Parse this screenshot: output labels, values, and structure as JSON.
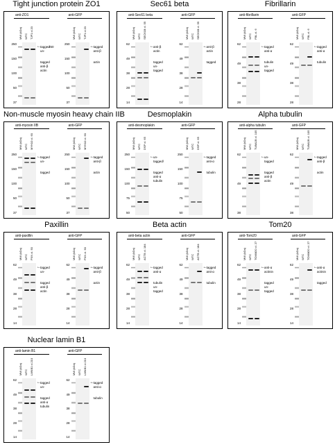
{
  "panels": [
    {
      "title": "Tight junction protein ZO1",
      "blots": [
        {
          "antibody": "anti-ZO1",
          "lanes": [
            "MW (kDa)",
            "WTC",
            "TJP1 cl.20"
          ],
          "ticks": [
            "250",
            "150",
            "100",
            "50",
            "37"
          ],
          "notes": [
            "tagged",
            "un-",
            "tagged",
            "anti-β",
            "actin"
          ],
          "extra": "250"
        },
        {
          "antibody": "anti-GFP",
          "lanes": [
            "MW (kDa)",
            "WTC",
            "TJP1 cl.20"
          ],
          "ticks": [
            "250",
            "150",
            "100",
            "50",
            "37"
          ],
          "notes": [
            "tagged",
            "anti-β",
            "actin"
          ]
        }
      ]
    },
    {
      "title": "Sec61 beta",
      "blots": [
        {
          "antibody": "anti-Sec61 beta",
          "lanes": [
            "MW (kDa)",
            "WTC",
            "SEC61B cl. 55"
          ],
          "ticks": [
            "62",
            "49",
            "38",
            "28",
            "14"
          ],
          "notes": [
            "anti-β",
            "actin",
            "tagged",
            "un-",
            "tagged"
          ]
        },
        {
          "antibody": "anti-GFP",
          "lanes": [
            "MW (kDa)",
            "WTC",
            "SEC61B cl. 55"
          ],
          "ticks": [
            "62",
            "49",
            "38",
            "28",
            "14"
          ],
          "notes": [
            "anti-β",
            "actin",
            "tagged"
          ]
        }
      ]
    },
    {
      "title": "Fibrillarin",
      "blots": [
        {
          "antibody": "anti-fibrillarin",
          "lanes": [
            "MW (kDa)",
            "WTC",
            "FBL cl. 6"
          ],
          "ticks": [
            "62",
            "49",
            "38",
            "28"
          ],
          "notes": [
            "tagged",
            "anti-α",
            "tubulin",
            "un-",
            "tagged"
          ]
        },
        {
          "antibody": "anti-GFP",
          "lanes": [
            "MW (kDa)",
            "WTC",
            "FBL cl. 6"
          ],
          "ticks": [
            "62",
            "49",
            "38",
            "28"
          ],
          "notes": [
            "tagged",
            "anti-α",
            "tubulin"
          ]
        }
      ]
    },
    {
      "title": "Non-muscle myosin heavy chain IIB",
      "blots": [
        {
          "antibody": "anti-myosin IIB",
          "lanes": [
            "MW (kDa)",
            "WTC",
            "MYH10 cl. 60"
          ],
          "ticks": [
            "250",
            "150",
            "100",
            "50",
            "37"
          ],
          "notes": [
            "tagged",
            "un-",
            "tagged"
          ]
        },
        {
          "antibody": "anti-GFP",
          "lanes": [
            "MW (kDa)",
            "WTC",
            "MYH10 cl. 60"
          ],
          "ticks": [
            "250",
            "150",
            "100",
            "50",
            "37"
          ],
          "notes": [
            "tagged",
            "anti-β",
            "actin"
          ]
        }
      ]
    },
    {
      "title": "Desmoplakin",
      "blots": [
        {
          "antibody": "anti-desmoplakin",
          "lanes": [
            "MW (kDa)",
            "WTC",
            "DSP cl. 65"
          ],
          "ticks": [
            "250",
            "150",
            "100",
            "75",
            "50"
          ],
          "notes": [
            "un-",
            "tagged/",
            "tagged",
            "anti-α",
            "tubulin"
          ]
        },
        {
          "antibody": "anti-GFP",
          "lanes": [
            "MW (kDa)",
            "WTC",
            "DSP cl. 65"
          ],
          "ticks": [
            "250",
            "150",
            "100",
            "75",
            "50"
          ],
          "notes": [
            "tagged",
            "anti-α",
            "tubulin"
          ]
        }
      ]
    },
    {
      "title": "Alpha tubulin",
      "blots": [
        {
          "antibody": "anti-alpha tubulin",
          "lanes": [
            "MW (kDa)",
            "WTC",
            "TUBA1B cl. 105"
          ],
          "ticks": [
            "62",
            "49",
            "38"
          ],
          "notes": [
            "un-",
            "tagged",
            "tagged",
            "anti-β",
            "actin"
          ]
        },
        {
          "antibody": "anti-GFP",
          "lanes": [
            "MW (kDa)",
            "WTC",
            "TUBA1B cl. 105"
          ],
          "ticks": [
            "62",
            "49",
            "38"
          ],
          "notes": [
            "tagged",
            "anti-β",
            "actin"
          ]
        }
      ]
    },
    {
      "title": "Paxillin",
      "blots": [
        {
          "antibody": "anti-paxillin",
          "lanes": [
            "MW (kDa)",
            "WTC",
            "PXN cl. 50"
          ],
          "ticks": [
            "62",
            "49",
            "38",
            "28",
            "14"
          ],
          "notes": [
            "tagged",
            "un-",
            "tagged",
            "anti-β",
            "actin"
          ]
        },
        {
          "antibody": "anti-GFP",
          "lanes": [
            "MW (kDa)",
            "WTC",
            "PXN cl. 50"
          ],
          "ticks": [
            "62",
            "49",
            "38",
            "28",
            "14"
          ],
          "notes": [
            "tagged",
            "anti-β",
            "actin"
          ]
        }
      ]
    },
    {
      "title": "Beta actin",
      "blots": [
        {
          "antibody": "anti-beta actin",
          "lanes": [
            "MW (kDa)",
            "WTC",
            "ACTB cl. 184"
          ],
          "ticks": [
            "62",
            "49",
            "38",
            "28",
            "14"
          ],
          "notes": [
            "tagged",
            "anti-α",
            "tubulin",
            "un-",
            "tagged"
          ]
        },
        {
          "antibody": "anti-GFP",
          "lanes": [
            "MW (kDa)",
            "WTC",
            "ACTB cl. 184"
          ],
          "ticks": [
            "62",
            "49",
            "38",
            "28",
            "14"
          ],
          "notes": [
            "tagged",
            "anti-α",
            "tubulin"
          ]
        }
      ]
    },
    {
      "title": "Tom20",
      "blots": [
        {
          "antibody": "anti-Tom20",
          "lanes": [
            "MW (kDa)",
            "WTC",
            "TOMM20 cl. 27"
          ],
          "ticks": [
            "62",
            "49",
            "38",
            "28",
            "14"
          ],
          "notes": [
            "anti-α",
            "actinin",
            "tagged",
            "un-",
            "tagged"
          ]
        },
        {
          "antibody": "anti-GFP",
          "lanes": [
            "MW (kDa)",
            "WTC",
            "TOMM20 cl. 27"
          ],
          "ticks": [
            "62",
            "49",
            "38",
            "28",
            "14"
          ],
          "notes": [
            "anti-α",
            "actinin",
            "tagged"
          ]
        }
      ]
    },
    {
      "title": "Nuclear lamin B1",
      "blots": [
        {
          "antibody": "anti-lamin B1",
          "lanes": [
            "MW (kDa)",
            "WTC",
            "LMNB1 cl.210"
          ],
          "ticks": [
            "62",
            "49",
            "38",
            "28",
            "14"
          ],
          "notes": [
            "tagged",
            "un-",
            "tagged",
            "anti-α",
            "tubulin"
          ]
        },
        {
          "antibody": "anti-GFP",
          "lanes": [
            "MW (kDa)",
            "WTC",
            "LMNB1 cl.210"
          ],
          "ticks": [
            "62",
            "49",
            "38",
            "28",
            "14"
          ],
          "notes": [
            "tagged",
            "anti-α",
            "tubulin"
          ]
        }
      ]
    }
  ]
}
